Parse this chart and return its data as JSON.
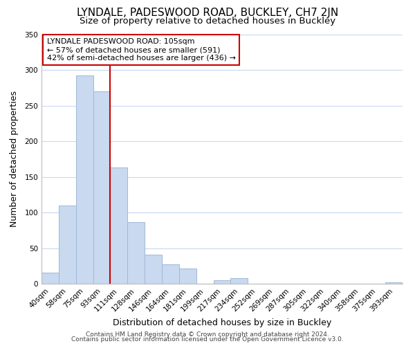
{
  "title": "LYNDALE, PADESWOOD ROAD, BUCKLEY, CH7 2JN",
  "subtitle": "Size of property relative to detached houses in Buckley",
  "xlabel": "Distribution of detached houses by size in Buckley",
  "ylabel": "Number of detached properties",
  "bar_labels": [
    "40sqm",
    "58sqm",
    "75sqm",
    "93sqm",
    "111sqm",
    "128sqm",
    "146sqm",
    "164sqm",
    "181sqm",
    "199sqm",
    "217sqm",
    "234sqm",
    "252sqm",
    "269sqm",
    "287sqm",
    "305sqm",
    "322sqm",
    "340sqm",
    "358sqm",
    "375sqm",
    "393sqm"
  ],
  "bar_values": [
    16,
    110,
    293,
    270,
    163,
    87,
    41,
    27,
    21,
    0,
    5,
    8,
    0,
    0,
    0,
    0,
    0,
    0,
    0,
    0,
    2
  ],
  "bar_color": "#c8d9f0",
  "bar_edge_color": "#a0b8d8",
  "vline_x": 4,
  "vline_color": "#cc0000",
  "annotation_line1": "LYNDALE PADESWOOD ROAD: 105sqm",
  "annotation_line2": "← 57% of detached houses are smaller (591)",
  "annotation_line3": "42% of semi-detached houses are larger (436) →",
  "annotation_box_color": "#ffffff",
  "annotation_box_edge_color": "#cc0000",
  "ylim": [
    0,
    350
  ],
  "yticks": [
    0,
    50,
    100,
    150,
    200,
    250,
    300,
    350
  ],
  "footer_line1": "Contains HM Land Registry data © Crown copyright and database right 2024.",
  "footer_line2": "Contains public sector information licensed under the Open Government Licence v3.0.",
  "background_color": "#ffffff",
  "grid_color": "#c8d9f0",
  "title_fontsize": 11,
  "subtitle_fontsize": 9.5,
  "axis_label_fontsize": 9,
  "tick_fontsize": 7.5,
  "annotation_fontsize": 8,
  "footer_fontsize": 6.5
}
